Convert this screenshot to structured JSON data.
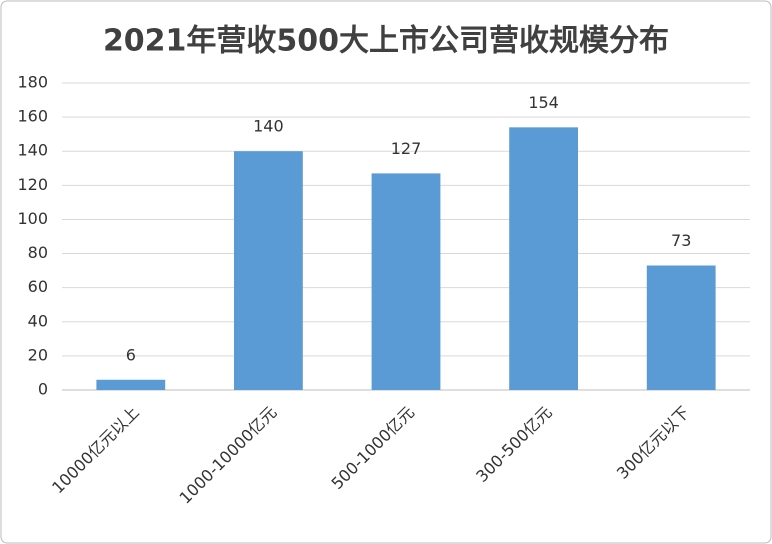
{
  "chart_data": {
    "type": "bar",
    "title": "2021年营收500大上市公司营收规模分布",
    "categories": [
      "10000亿元以上",
      "1000-10000亿元",
      "500-1000亿元",
      "300-500亿元",
      "300亿元以下"
    ],
    "values": [
      6,
      140,
      127,
      154,
      73
    ],
    "color": "#5b9bd5",
    "ylim": [
      0,
      180
    ],
    "yticks": [
      0,
      20,
      40,
      60,
      80,
      100,
      120,
      140,
      160,
      180
    ],
    "grid": true
  }
}
